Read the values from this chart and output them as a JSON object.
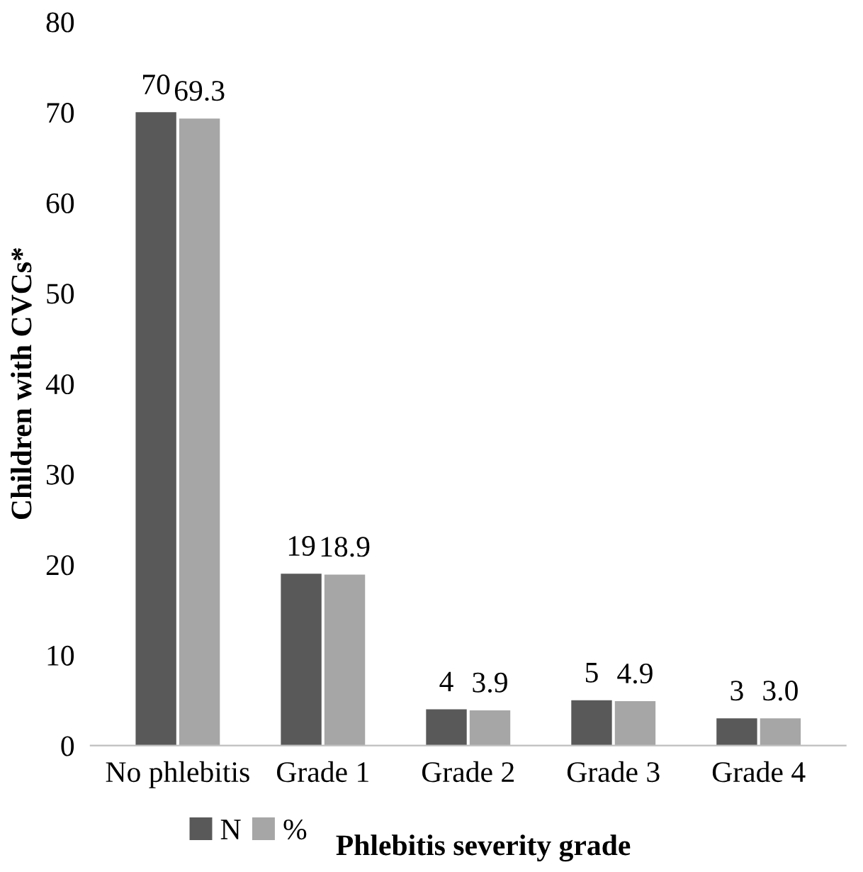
{
  "chart_data": {
    "type": "bar",
    "xlabel": "Phlebitis severity grade",
    "ylabel": "Children with CVCs*",
    "categories": [
      "No phlebitis",
      "Grade 1",
      "Grade 2",
      "Grade 3",
      "Grade 4"
    ],
    "series": [
      {
        "name": "N",
        "color": "#595959",
        "values": [
          70,
          19,
          4,
          5,
          3
        ],
        "value_labels": [
          "70",
          "19",
          "4",
          "5",
          "3"
        ]
      },
      {
        "name": "%",
        "color": "#a6a6a6",
        "values": [
          69.3,
          18.9,
          3.9,
          4.9,
          3.0
        ],
        "value_labels": [
          "69.3",
          "18.9",
          "3.9",
          "4.9",
          "3.0"
        ]
      }
    ],
    "ylim": [
      0,
      80
    ],
    "yticks": [
      0,
      10,
      20,
      30,
      40,
      50,
      60,
      70,
      80
    ],
    "grid": false,
    "legend": "bottom left"
  }
}
